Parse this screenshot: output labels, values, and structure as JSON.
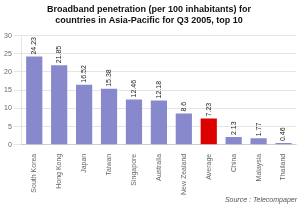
{
  "chart_data": {
    "type": "bar",
    "title": "Broadband penetration (per 100 inhabitants) for\ncountries in Asia-Pacific for Q3 2005, top 10",
    "categories": [
      "South Korea",
      "Hong Kong",
      "Japan",
      "Taiwan",
      "Singapore",
      "Australia",
      "New Zealand",
      "Average",
      "China",
      "Malaysia",
      "Thailand"
    ],
    "values": [
      24.23,
      21.85,
      16.52,
      15.38,
      12.46,
      12.18,
      8.6,
      7.23,
      2.13,
      1.77,
      0.46
    ],
    "colors": [
      "#8888cc",
      "#8888cc",
      "#8888cc",
      "#8888cc",
      "#8888cc",
      "#8888cc",
      "#8888cc",
      "#dd0000",
      "#8888cc",
      "#8888cc",
      "#8888cc"
    ],
    "ylim": [
      0,
      30
    ],
    "yticks": [
      0,
      5,
      10,
      15,
      20,
      25,
      30
    ],
    "grid": true,
    "data_labels": true,
    "annotations": [
      "Source : Telecompaper"
    ]
  }
}
